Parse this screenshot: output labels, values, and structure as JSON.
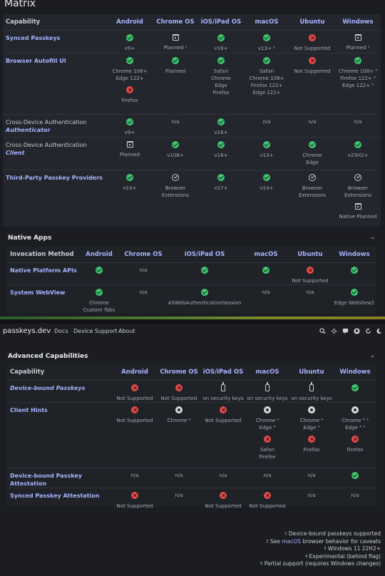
{
  "page": {
    "title": "Matrix"
  },
  "matrix": {
    "header": [
      "Capability",
      "Android",
      "Chrome OS",
      "iOS/iPad OS",
      "macOS",
      "Ubuntu",
      "Windows"
    ],
    "rows": [
      {
        "label": "Synced Passkeys",
        "cells": [
          [
            "ok:v9+"
          ],
          [
            "cal:Planned ¹"
          ],
          [
            "ok:v16+"
          ],
          [
            "ok:v13+ ²"
          ],
          [
            "no:Not Supported"
          ],
          [
            "cal:Planned ¹"
          ]
        ]
      },
      {
        "label": "Browser Autofill UI",
        "cells": [
          [
            "ok:Chrome 108+",
            "t:Edge 122+",
            "gap",
            "no:Firefox"
          ],
          [
            "ok:Planned"
          ],
          [
            "ok:Safari",
            "t:Chrome",
            "t:Edge",
            "t:Firefox"
          ],
          [
            "ok:Safari",
            "t:Chrome 108+",
            "t:Firefox 122+",
            "t:Edge 122+"
          ],
          [
            "no:Not Supported"
          ],
          [
            "ok:Chrome 108+ ³",
            "t:Firefox 122+ ³",
            "t:Edge 122+ ³"
          ]
        ]
      },
      {
        "label": "Cross-Device Authentication",
        "em": "Authenticator",
        "cells": [
          [
            "ok:v9+"
          ],
          [
            "t:n/a"
          ],
          [
            "ok:v16+"
          ],
          [
            "t:n/a"
          ],
          [
            "t:n/a"
          ],
          [
            "t:n/a"
          ]
        ]
      },
      {
        "label": "Cross-Device Authentication",
        "em": "Client",
        "cells": [
          [
            "cal:Planned"
          ],
          [
            "ok:v108+"
          ],
          [
            "ok:v16+"
          ],
          [
            "ok:v13+"
          ],
          [
            "ok:Chrome",
            "t:Edge"
          ],
          [
            "ok:v23H2+"
          ]
        ]
      },
      {
        "label": "Third-Party Passkey Providers",
        "cells": [
          [
            "ok:v14+"
          ],
          [
            "ring:Browser",
            "t:Extensions"
          ],
          [
            "ok:v17+"
          ],
          [
            "ok:v14+"
          ],
          [
            "ring:Browser",
            "t:Extensions"
          ],
          [
            "ring:Browser",
            "t:Extensions",
            "gap",
            "cal:Native Planned"
          ]
        ]
      }
    ]
  },
  "native_apps": {
    "title": "Native Apps",
    "header": [
      "Invocation Method",
      "Android",
      "Chrome OS",
      "iOS/iPad OS",
      "macOS",
      "Ubuntu",
      "Windows"
    ],
    "rows": [
      {
        "label": "Native Platform APIs",
        "cells": [
          [
            "ok:"
          ],
          [
            "t:n/a"
          ],
          [
            "ok:"
          ],
          [
            "ok:"
          ],
          [
            "no:Not Supported"
          ],
          [
            "ok:"
          ]
        ]
      },
      {
        "label": "System WebView",
        "cells": [
          [
            "ok:Chrome",
            "t:Custom Tabs"
          ],
          [
            "t:n/a"
          ],
          [
            "ok:ASWebAuthenticationSession"
          ],
          [
            "t:n/a"
          ],
          [
            "t:n/a"
          ],
          [
            "ok:Edge WebView2"
          ]
        ]
      }
    ]
  },
  "nav": {
    "brand": "passkeys.dev",
    "links": [
      "Docs",
      "Device Support",
      "About"
    ]
  },
  "advanced": {
    "title": "Advanced Capabilities",
    "header": [
      "Capability",
      "Android",
      "Chrome OS",
      "iOS/iPad OS",
      "macOS",
      "Ubuntu",
      "Windows"
    ],
    "rows": [
      {
        "label": "Device-bound Passkeys",
        "italic": true,
        "cells": [
          [
            "no:Not Supported"
          ],
          [
            "no:Not Supported"
          ],
          [
            "key:on security keys"
          ],
          [
            "key:on security keys"
          ],
          [
            "key:on security keys"
          ],
          [
            "ok:"
          ]
        ]
      },
      {
        "label": "Client Hints",
        "cells": [
          [
            "no:Not Supported"
          ],
          [
            "chrome:Chrome ⁴"
          ],
          [
            "no:Not Supported"
          ],
          [
            "chrome:Chrome ⁴",
            "t:Edge ⁴",
            "gap",
            "no:Safari",
            "t:Firefox"
          ],
          [
            "chrome:Chrome ⁴",
            "t:Edge ⁴",
            "gap",
            "no:Firefox"
          ],
          [
            "chrome:Chrome ⁴ ⁵",
            "t:Edge ⁴ ⁵",
            "gap",
            "no:Firefox"
          ]
        ]
      },
      {
        "label": "Device-bound Passkey Attestation",
        "cells": [
          [
            "t:n/a"
          ],
          [
            "t:n/a"
          ],
          [
            "t:n/a"
          ],
          [
            "t:n/a"
          ],
          [
            "t:n/a"
          ],
          [
            "ok:"
          ]
        ]
      },
      {
        "label": "Synced Passkey Attestation",
        "cells": [
          [
            "no:Not Supported"
          ],
          [
            "t:n/a"
          ],
          [
            "no:Not Supported"
          ],
          [
            "no:Not Supported"
          ],
          [
            "t:n/a"
          ],
          [
            "t:n/a"
          ]
        ]
      }
    ]
  },
  "footnotes": [
    {
      "num": "1",
      "text": "Device-bound passkeys supported"
    },
    {
      "num": "2",
      "pre": "See ",
      "link": "macOS",
      "text": " browser behavior for caveats"
    },
    {
      "num": "3",
      "text": "Windows 11 22H2+"
    },
    {
      "num": "4",
      "text": "Experimental (behind flag)"
    },
    {
      "num": "5",
      "text": "Partial support (requires Windows changes)"
    }
  ],
  "colors": {
    "ok": "#3ec770",
    "no": "#e84b4b",
    "accent": "#a9b3ff"
  },
  "icons": [
    "check-circle-icon",
    "x-circle-icon",
    "calendar-icon",
    "ring-check-icon",
    "key-icon",
    "chrome-icon",
    "search-icon",
    "theme-icon",
    "chat-icon",
    "github-icon",
    "refresh-icon",
    "moon-icon"
  ]
}
